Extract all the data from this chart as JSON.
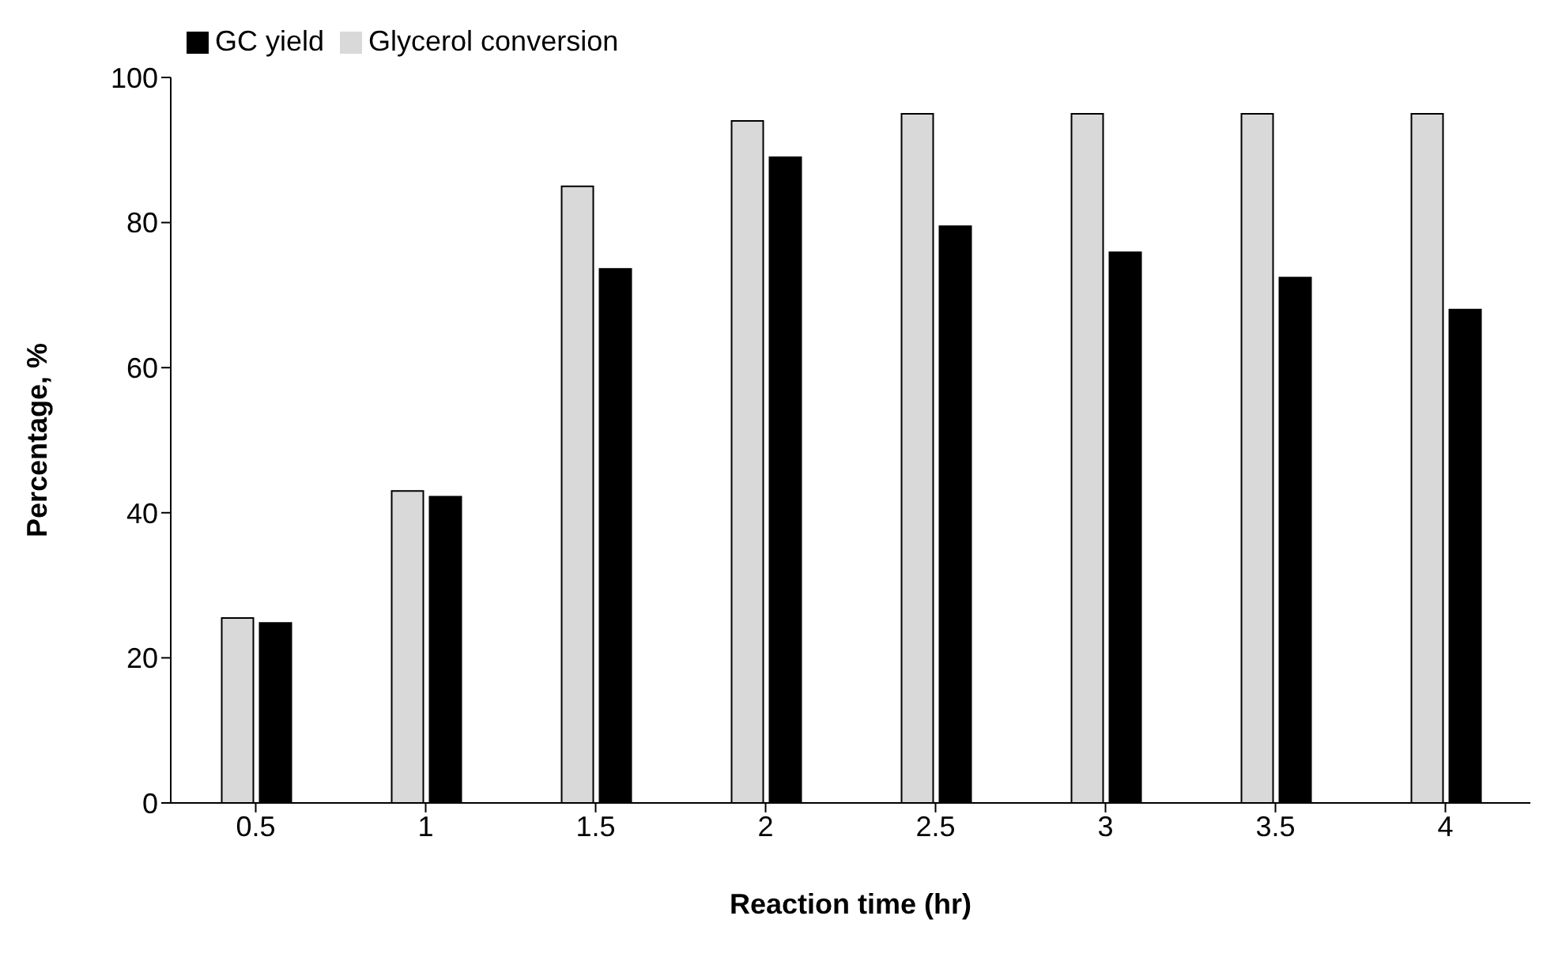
{
  "chart_data": {
    "type": "bar",
    "xlabel": "Reaction time (hr)",
    "ylabel": "Percentage, %",
    "categories": [
      "0.5",
      "1",
      "1.5",
      "2",
      "2.5",
      "3",
      "3.5",
      "4"
    ],
    "series": [
      {
        "name": "Glycerol conversion",
        "color": "#d9d9d9",
        "values": [
          25.5,
          43,
          85,
          94,
          95,
          95,
          95,
          95
        ]
      },
      {
        "name": "GC yield",
        "color": "#000000",
        "values": [
          24.8,
          42.2,
          73.6,
          89,
          79.5,
          75.9,
          72.4,
          68
        ]
      }
    ],
    "ylim": [
      0,
      100
    ],
    "yticks": [
      0,
      20,
      40,
      60,
      80,
      100
    ],
    "grid": false,
    "legend": "top left"
  }
}
